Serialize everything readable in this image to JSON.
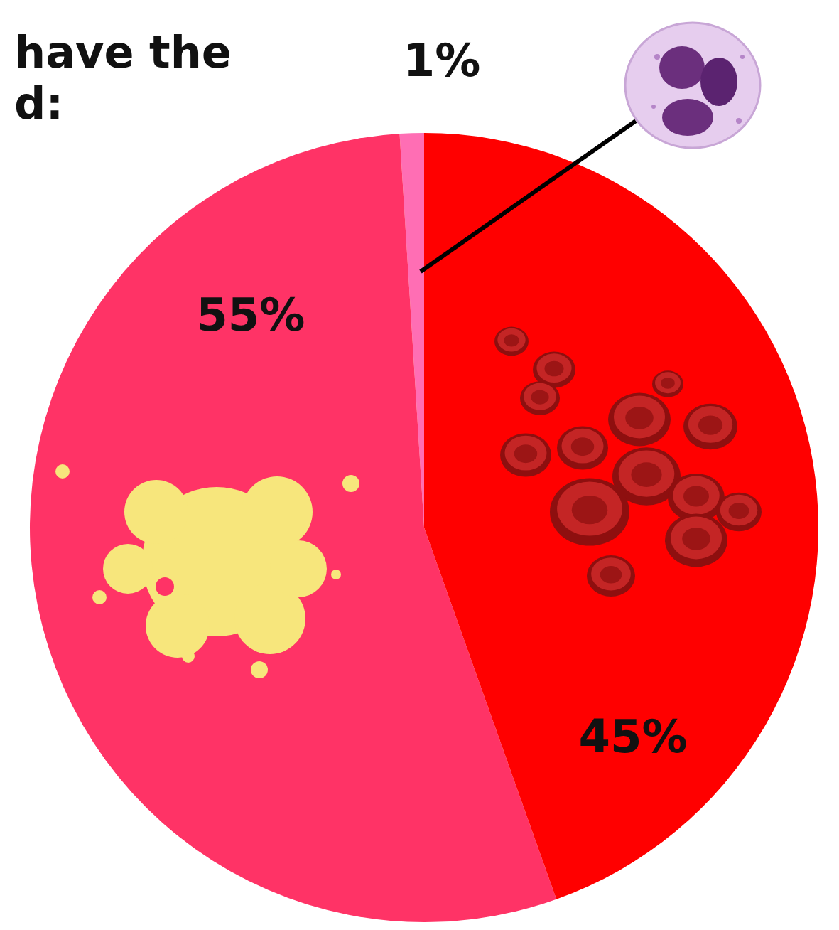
{
  "chart_data": {
    "type": "pie",
    "title": "have the\nd:",
    "values": [
      1,
      55,
      45
    ],
    "value_labels": [
      "1%",
      "55%",
      "45%"
    ],
    "colors": [
      "#ff6eb4",
      "#ff3366",
      "#ff0000"
    ],
    "data_labels": true
  }
}
